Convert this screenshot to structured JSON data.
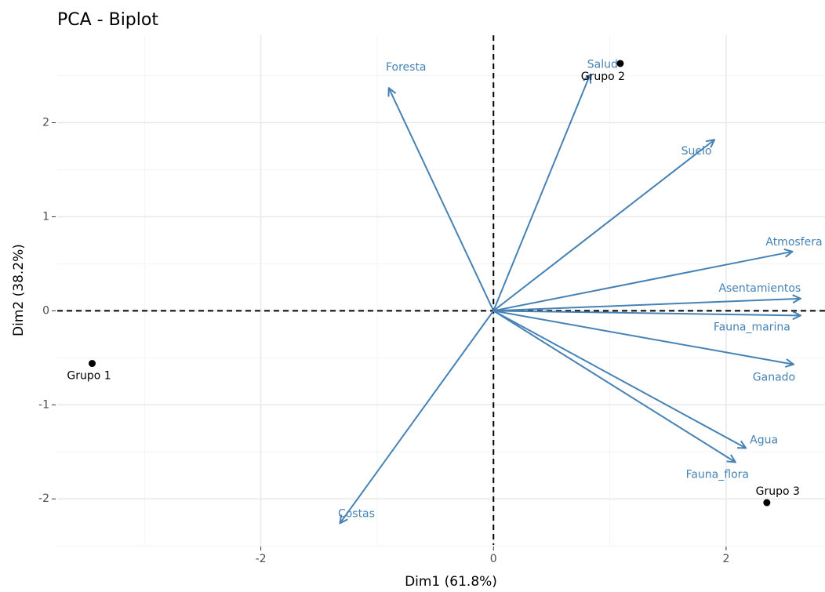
{
  "chart_data": {
    "type": "biplot",
    "title": "PCA - Biplot",
    "x_label": "Dim1 (61.8%)",
    "y_label": "Dim2 (38.2%)",
    "xlim": [
      -3.75,
      2.85
    ],
    "ylim": [
      -2.49,
      2.93
    ],
    "xticks": [
      -2,
      0,
      2
    ],
    "yticks": [
      -2,
      -1,
      0,
      1,
      2
    ],
    "x_minor_grid": [
      -3,
      -1,
      1
    ],
    "y_minor_grid": [
      -2.5,
      -1.5,
      -0.5,
      0.5,
      1.5,
      2.5
    ],
    "grid": true,
    "points": {
      "color": "#000000",
      "labels": [
        "Grupo 1",
        "Grupo 2",
        "Grupo 3"
      ],
      "x": [
        -3.45,
        1.09,
        2.35
      ],
      "y": [
        -0.56,
        2.63,
        -2.04
      ]
    },
    "variables": {
      "color": "#4682b4",
      "labels": [
        "Foresta",
        "Salud",
        "Suelo",
        "Atmosfera",
        "Asentamientos",
        "Fauna_marina",
        "Ganado",
        "Agua",
        "Fauna_flora",
        "Costas"
      ],
      "x": [
        -0.9,
        0.83,
        1.9,
        2.57,
        2.64,
        2.64,
        2.58,
        2.17,
        2.08,
        -1.32
      ],
      "y": [
        2.37,
        2.51,
        1.82,
        0.63,
        0.13,
        -0.05,
        -0.57,
        -1.46,
        -1.61,
        -2.26
      ]
    }
  }
}
